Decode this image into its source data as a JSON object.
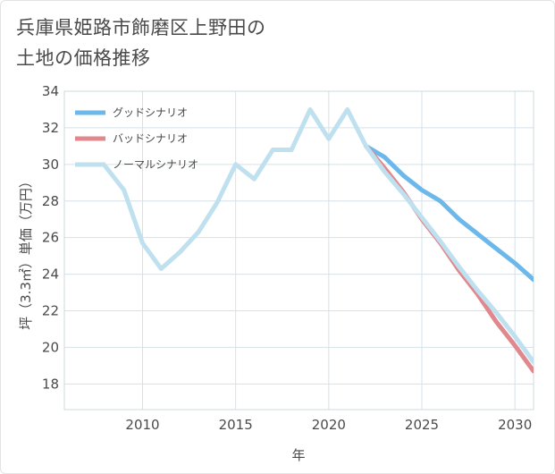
{
  "title_lines": [
    "兵庫県姫路市飾磨区上野田の",
    "土地の価格推移"
  ],
  "chart_data": {
    "type": "line",
    "title": "兵庫県姫路市飾磨区上野田の土地の価格推移",
    "xlabel": "年",
    "ylabel": "坪（3.3㎡）単価（万円）",
    "xlim": [
      2005.8,
      2031
    ],
    "ylim": [
      16.6,
      34
    ],
    "x_ticks": [
      2010,
      2015,
      2020,
      2025,
      2030
    ],
    "y_ticks": [
      18,
      20,
      22,
      24,
      26,
      28,
      30,
      32,
      34
    ],
    "grid": true,
    "legend_position": "top-left",
    "series": [
      {
        "name": "グッドシナリオ",
        "color": "#6cb8ea",
        "x": [
          2022,
          2023,
          2024,
          2025,
          2026,
          2027,
          2028,
          2029,
          2030,
          2031
        ],
        "y": [
          31.0,
          30.4,
          29.4,
          28.6,
          28.0,
          27.0,
          26.2,
          25.4,
          24.6,
          23.7
        ]
      },
      {
        "name": "バッドシナリオ",
        "color": "#e0888e",
        "x": [
          2022,
          2023,
          2024,
          2025,
          2026,
          2027,
          2028,
          2029,
          2030,
          2031
        ],
        "y": [
          31.0,
          29.8,
          28.5,
          27.0,
          25.7,
          24.2,
          22.9,
          21.4,
          20.1,
          18.7
        ]
      },
      {
        "name": "ノーマルシナリオ",
        "color": "#bfe0ee",
        "x": [
          2008,
          2009,
          2010,
          2011,
          2012,
          2013,
          2014,
          2015,
          2016,
          2017,
          2018,
          2019,
          2020,
          2021,
          2022,
          2023,
          2024,
          2025,
          2026,
          2027,
          2028,
          2029,
          2030,
          2031
        ],
        "y": [
          29.9,
          28.6,
          25.7,
          24.3,
          25.2,
          26.3,
          27.9,
          30.0,
          29.2,
          30.8,
          30.8,
          33.0,
          31.4,
          33.0,
          31.0,
          29.6,
          28.4,
          27.1,
          25.8,
          24.4,
          23.1,
          21.9,
          20.6,
          19.2
        ]
      }
    ]
  }
}
